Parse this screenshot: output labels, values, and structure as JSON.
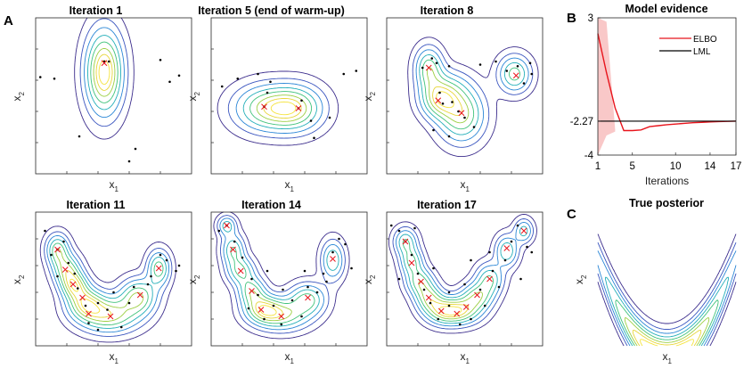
{
  "panel_labels": {
    "a": "A",
    "b": "B",
    "c": "C"
  },
  "axis_labels": {
    "x_main": "x",
    "x_sub": "1",
    "y_main": "x",
    "y_sub": "2"
  },
  "chart_data": [
    {
      "type": "contour",
      "title": "Iteration 1",
      "centers": [
        [
          0.44,
          0.29
        ]
      ],
      "points": [
        [
          0.03,
          0.38
        ],
        [
          0.12,
          0.39
        ],
        [
          0.28,
          0.76
        ],
        [
          0.44,
          0.28
        ],
        [
          0.47,
          0.28
        ],
        [
          0.6,
          0.92
        ],
        [
          0.64,
          0.84
        ],
        [
          0.8,
          0.27
        ],
        [
          0.86,
          0.41
        ],
        [
          0.92,
          0.37
        ]
      ],
      "components": [
        [
          0.44,
          0.35,
          0.08,
          0.18,
          1.0
        ]
      ]
    },
    {
      "type": "contour",
      "title": "Iteration 5 (end of warm-up)",
      "centers": [
        [
          0.34,
          0.57
        ],
        [
          0.56,
          0.58
        ]
      ],
      "points": [
        [
          0.07,
          0.44
        ],
        [
          0.17,
          0.39
        ],
        [
          0.3,
          0.36
        ],
        [
          0.38,
          0.41
        ],
        [
          0.36,
          0.48
        ],
        [
          0.34,
          0.57
        ],
        [
          0.58,
          0.53
        ],
        [
          0.56,
          0.58
        ],
        [
          0.64,
          0.66
        ],
        [
          0.66,
          0.77
        ],
        [
          0.76,
          0.64
        ],
        [
          0.85,
          0.36
        ],
        [
          0.93,
          0.34
        ]
      ],
      "components": [
        [
          0.35,
          0.58,
          0.14,
          0.1,
          1.0
        ],
        [
          0.55,
          0.58,
          0.12,
          0.1,
          0.95
        ]
      ]
    },
    {
      "type": "contour",
      "title": "Iteration 8",
      "centers": [
        [
          0.27,
          0.32
        ],
        [
          0.33,
          0.53
        ],
        [
          0.48,
          0.61
        ],
        [
          0.83,
          0.37
        ]
      ],
      "points": [
        [
          0.23,
          0.32
        ],
        [
          0.29,
          0.26
        ],
        [
          0.32,
          0.29
        ],
        [
          0.34,
          0.48
        ],
        [
          0.36,
          0.55
        ],
        [
          0.4,
          0.31
        ],
        [
          0.42,
          0.54
        ],
        [
          0.46,
          0.6
        ],
        [
          0.5,
          0.64
        ],
        [
          0.56,
          0.7
        ],
        [
          0.6,
          0.3
        ],
        [
          0.7,
          0.28
        ],
        [
          0.77,
          0.34
        ],
        [
          0.84,
          0.31
        ],
        [
          0.88,
          0.42
        ],
        [
          0.92,
          0.29
        ],
        [
          0.93,
          0.36
        ],
        [
          0.3,
          0.72
        ],
        [
          0.4,
          0.76
        ]
      ],
      "components": [
        [
          0.27,
          0.32,
          0.06,
          0.09,
          0.85
        ],
        [
          0.33,
          0.53,
          0.08,
          0.08,
          0.8
        ],
        [
          0.48,
          0.62,
          0.1,
          0.12,
          1.0
        ],
        [
          0.82,
          0.36,
          0.07,
          0.08,
          0.85
        ],
        [
          0.38,
          0.44,
          0.1,
          0.08,
          0.4
        ]
      ]
    },
    {
      "type": "contour",
      "title": "Iteration 11",
      "centers": [
        [
          0.14,
          0.28
        ],
        [
          0.19,
          0.43
        ],
        [
          0.24,
          0.54
        ],
        [
          0.3,
          0.64
        ],
        [
          0.34,
          0.76
        ],
        [
          0.48,
          0.78
        ],
        [
          0.67,
          0.62
        ],
        [
          0.79,
          0.42
        ]
      ],
      "points": [
        [
          0.06,
          0.14
        ],
        [
          0.1,
          0.32
        ],
        [
          0.14,
          0.28
        ],
        [
          0.18,
          0.22
        ],
        [
          0.21,
          0.38
        ],
        [
          0.25,
          0.46
        ],
        [
          0.27,
          0.57
        ],
        [
          0.32,
          0.7
        ],
        [
          0.34,
          0.83
        ],
        [
          0.4,
          0.68
        ],
        [
          0.46,
          0.73
        ],
        [
          0.5,
          0.6
        ],
        [
          0.55,
          0.86
        ],
        [
          0.6,
          0.68
        ],
        [
          0.63,
          0.56
        ],
        [
          0.72,
          0.54
        ],
        [
          0.74,
          0.48
        ],
        [
          0.8,
          0.32
        ],
        [
          0.84,
          0.36
        ],
        [
          0.9,
          0.44
        ],
        [
          0.92,
          0.4
        ],
        [
          0.14,
          0.48
        ],
        [
          0.4,
          0.88
        ]
      ],
      "components": [
        [
          0.14,
          0.28,
          0.05,
          0.08,
          0.85
        ],
        [
          0.2,
          0.43,
          0.06,
          0.08,
          0.85
        ],
        [
          0.25,
          0.55,
          0.06,
          0.07,
          0.9
        ],
        [
          0.32,
          0.68,
          0.08,
          0.08,
          0.9
        ],
        [
          0.47,
          0.77,
          0.13,
          0.09,
          1.0
        ],
        [
          0.66,
          0.63,
          0.08,
          0.09,
          0.9
        ],
        [
          0.79,
          0.42,
          0.05,
          0.09,
          0.85
        ]
      ]
    },
    {
      "type": "contour",
      "title": "Iteration 14",
      "centers": [
        [
          0.1,
          0.1
        ],
        [
          0.14,
          0.28
        ],
        [
          0.19,
          0.44
        ],
        [
          0.26,
          0.59
        ],
        [
          0.32,
          0.73
        ],
        [
          0.45,
          0.78
        ],
        [
          0.62,
          0.64
        ],
        [
          0.78,
          0.35
        ]
      ],
      "points": [
        [
          0.05,
          0.14
        ],
        [
          0.1,
          0.1
        ],
        [
          0.15,
          0.22
        ],
        [
          0.2,
          0.34
        ],
        [
          0.26,
          0.5
        ],
        [
          0.3,
          0.62
        ],
        [
          0.34,
          0.8
        ],
        [
          0.4,
          0.7
        ],
        [
          0.45,
          0.84
        ],
        [
          0.52,
          0.66
        ],
        [
          0.58,
          0.78
        ],
        [
          0.62,
          0.56
        ],
        [
          0.68,
          0.6
        ],
        [
          0.72,
          0.46
        ],
        [
          0.74,
          0.52
        ],
        [
          0.78,
          0.3
        ],
        [
          0.82,
          0.2
        ],
        [
          0.86,
          0.24
        ],
        [
          0.9,
          0.42
        ],
        [
          0.24,
          0.72
        ],
        [
          0.6,
          0.44
        ],
        [
          0.36,
          0.44
        ],
        [
          0.46,
          0.58
        ]
      ],
      "components": [
        [
          0.1,
          0.1,
          0.04,
          0.05,
          0.75
        ],
        [
          0.14,
          0.28,
          0.05,
          0.08,
          0.85
        ],
        [
          0.19,
          0.44,
          0.06,
          0.07,
          0.85
        ],
        [
          0.26,
          0.59,
          0.06,
          0.07,
          0.9
        ],
        [
          0.33,
          0.72,
          0.08,
          0.07,
          0.9
        ],
        [
          0.45,
          0.77,
          0.12,
          0.08,
          1.0
        ],
        [
          0.62,
          0.65,
          0.08,
          0.08,
          0.9
        ],
        [
          0.78,
          0.36,
          0.05,
          0.1,
          0.85
        ]
      ]
    },
    {
      "type": "contour",
      "title": "Iteration 17",
      "centers": [
        [
          0.12,
          0.22
        ],
        [
          0.16,
          0.38
        ],
        [
          0.22,
          0.52
        ],
        [
          0.27,
          0.64
        ],
        [
          0.35,
          0.74
        ],
        [
          0.45,
          0.76
        ],
        [
          0.51,
          0.71
        ],
        [
          0.58,
          0.62
        ],
        [
          0.66,
          0.5
        ],
        [
          0.77,
          0.27
        ],
        [
          0.88,
          0.14
        ]
      ],
      "points": [
        [
          0.03,
          0.1
        ],
        [
          0.08,
          0.14
        ],
        [
          0.12,
          0.22
        ],
        [
          0.16,
          0.32
        ],
        [
          0.2,
          0.46
        ],
        [
          0.24,
          0.58
        ],
        [
          0.28,
          0.68
        ],
        [
          0.33,
          0.8
        ],
        [
          0.4,
          0.7
        ],
        [
          0.47,
          0.84
        ],
        [
          0.54,
          0.8
        ],
        [
          0.6,
          0.58
        ],
        [
          0.63,
          0.7
        ],
        [
          0.68,
          0.44
        ],
        [
          0.72,
          0.56
        ],
        [
          0.76,
          0.36
        ],
        [
          0.8,
          0.22
        ],
        [
          0.84,
          0.1
        ],
        [
          0.9,
          0.26
        ],
        [
          0.93,
          0.3
        ],
        [
          0.08,
          0.5
        ],
        [
          0.3,
          0.42
        ],
        [
          0.5,
          0.54
        ],
        [
          0.4,
          0.6
        ],
        [
          0.18,
          0.12
        ],
        [
          0.66,
          0.3
        ],
        [
          0.86,
          0.5
        ],
        [
          0.54,
          0.36
        ]
      ],
      "components": [
        [
          0.12,
          0.22,
          0.05,
          0.07,
          0.85
        ],
        [
          0.16,
          0.37,
          0.05,
          0.07,
          0.85
        ],
        [
          0.21,
          0.52,
          0.06,
          0.07,
          0.9
        ],
        [
          0.27,
          0.64,
          0.06,
          0.07,
          0.9
        ],
        [
          0.36,
          0.74,
          0.08,
          0.07,
          0.95
        ],
        [
          0.48,
          0.74,
          0.09,
          0.07,
          1.0
        ],
        [
          0.58,
          0.63,
          0.07,
          0.07,
          0.9
        ],
        [
          0.66,
          0.5,
          0.06,
          0.08,
          0.85
        ],
        [
          0.77,
          0.29,
          0.05,
          0.08,
          0.85
        ],
        [
          0.88,
          0.14,
          0.04,
          0.06,
          0.75
        ]
      ]
    },
    {
      "type": "line",
      "title": "Model evidence",
      "xlabel": "Iterations",
      "xlim": [
        1,
        17
      ],
      "ylim": [
        -4,
        3
      ],
      "xticks": [
        "1",
        "5",
        "10",
        "14",
        "17"
      ],
      "yticks": [
        "3",
        "-2.27",
        "-4"
      ],
      "legend": "top-right",
      "series": [
        {
          "name": "ELBO",
          "color": "#e8141c",
          "x": [
            1,
            2,
            3,
            4,
            5,
            6,
            7,
            8,
            9,
            10,
            11,
            12,
            13,
            14,
            15,
            16,
            17
          ],
          "y": [
            2.2,
            0.2,
            -1.6,
            -2.75,
            -2.75,
            -2.72,
            -2.55,
            -2.5,
            -2.45,
            -2.42,
            -2.38,
            -2.35,
            -2.33,
            -2.31,
            -2.29,
            -2.28,
            -2.27
          ]
        },
        {
          "name": "LML",
          "color": "#000000",
          "x": [
            1,
            17
          ],
          "y": [
            -2.27,
            -2.27
          ]
        }
      ],
      "band": {
        "color": "#f9c8c8",
        "x": [
          1,
          2,
          3
        ],
        "lower": [
          -4.0,
          -3.0,
          -2.8
        ],
        "upper": [
          3.0,
          2.8,
          -2.7
        ]
      }
    },
    {
      "type": "contour",
      "title": "True posterior",
      "shape": "banana"
    }
  ]
}
